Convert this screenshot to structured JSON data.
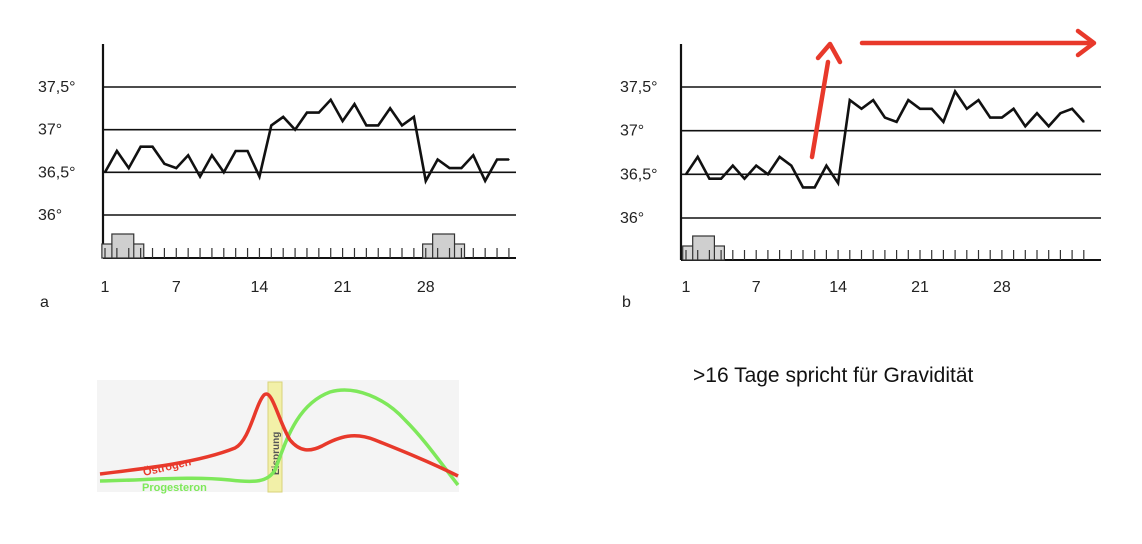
{
  "chart_data": [
    {
      "type": "line",
      "panel_label": "a",
      "y_tick_labels": [
        "37,5°",
        "37°",
        "36,5°",
        "36°"
      ],
      "y_ticks": [
        37.5,
        37.0,
        36.5,
        36.0
      ],
      "ylim": [
        35.6,
        37.9
      ],
      "x_tick_labels": [
        "1",
        "7",
        "14",
        "21",
        "28"
      ],
      "x_ticks": [
        1,
        7,
        14,
        21,
        28
      ],
      "xlim": [
        0,
        35
      ],
      "grid": true,
      "series": [
        {
          "x": [
            1,
            2,
            3,
            4,
            5,
            6,
            7,
            8,
            9,
            10,
            11,
            12,
            13,
            14,
            15,
            16,
            17,
            18,
            19,
            20,
            21,
            22,
            23,
            24,
            25,
            26,
            27,
            28,
            29,
            30,
            31,
            32,
            33,
            34,
            35
          ],
          "values": [
            36.5,
            36.75,
            36.55,
            36.8,
            36.8,
            36.6,
            36.55,
            36.7,
            36.45,
            36.7,
            36.5,
            36.75,
            36.75,
            36.45,
            37.05,
            37.15,
            37.0,
            37.2,
            37.2,
            37.35,
            37.1,
            37.3,
            37.05,
            37.05,
            37.25,
            37.05,
            37.15,
            36.4,
            36.65,
            36.55,
            36.55,
            36.7,
            36.4,
            36.65,
            36.65
          ]
        }
      ],
      "menstruation_days": [
        2,
        3,
        29,
        30
      ]
    },
    {
      "type": "line",
      "panel_label": "b",
      "y_tick_labels": [
        "37,5°",
        "37°",
        "36,5°",
        "36°"
      ],
      "y_ticks": [
        37.5,
        37.0,
        36.5,
        36.0
      ],
      "ylim": [
        35.6,
        37.9
      ],
      "x_tick_labels": [
        "1",
        "7",
        "14",
        "21",
        "28"
      ],
      "x_ticks": [
        1,
        7,
        14,
        21,
        28
      ],
      "xlim": [
        0,
        35
      ],
      "grid": true,
      "series": [
        {
          "x": [
            1,
            2,
            3,
            4,
            5,
            6,
            7,
            8,
            9,
            10,
            11,
            12,
            13,
            14,
            15,
            16,
            17,
            18,
            19,
            20,
            21,
            22,
            23,
            24,
            25,
            26,
            27,
            28,
            29,
            30,
            31,
            32,
            33,
            34,
            35
          ],
          "values": [
            36.5,
            36.7,
            36.45,
            36.45,
            36.6,
            36.45,
            36.6,
            36.5,
            36.7,
            36.6,
            36.35,
            36.35,
            36.6,
            36.4,
            37.35,
            37.25,
            37.35,
            37.15,
            37.1,
            37.35,
            37.25,
            37.25,
            37.1,
            37.45,
            37.25,
            37.35,
            37.15,
            37.15,
            37.25,
            37.05,
            37.2,
            37.05,
            37.2,
            37.25,
            37.1
          ]
        }
      ],
      "menstruation_days": [
        2,
        3
      ],
      "annotation_color": "#e8392b"
    },
    {
      "type": "line",
      "series": [
        {
          "name": "Östrogen",
          "color": "#e8392b"
        },
        {
          "name": "Progesteron",
          "color": "#7ee85a"
        }
      ],
      "marker_label": "Eisprung",
      "marker_color": "#f2f0a8"
    }
  ],
  "note": ">16 Tage spricht für Gravidität"
}
